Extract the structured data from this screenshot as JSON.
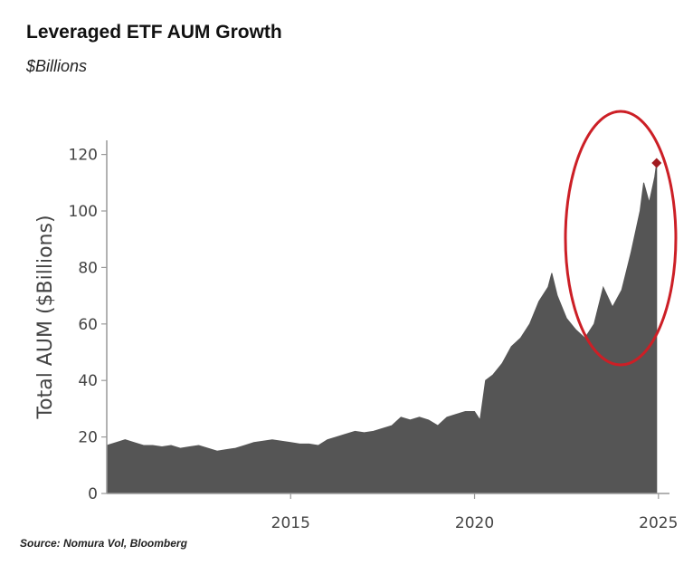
{
  "header": {
    "title": "Leveraged ETF AUM Growth",
    "subtitle": "$Billions"
  },
  "footer": {
    "source": "Source: Nomura Vol, Bloomberg"
  },
  "colors": {
    "area": "#555555",
    "highlight": "#cc1f26",
    "marker": "#a11a1f",
    "axis": "#999999"
  },
  "chart_data": {
    "type": "area",
    "title": "Leveraged ETF AUM Growth",
    "subtitle": "$Billions",
    "ylabel": "Total AUM ($Billions)",
    "xlabel": "",
    "xlim": [
      2010.0,
      2025.3
    ],
    "ylim": [
      0,
      125
    ],
    "yticks": [
      0,
      20,
      40,
      60,
      80,
      100,
      120
    ],
    "xticks": [
      2015,
      2020,
      2025
    ],
    "ytick_labels": [
      "0",
      "20",
      "40",
      "60",
      "80",
      "100",
      "120"
    ],
    "xtick_labels": [
      "2015",
      "2020",
      "2025"
    ],
    "series": [
      {
        "name": "Total AUM",
        "x": [
          2010.0,
          2010.25,
          2010.5,
          2010.75,
          2011.0,
          2011.25,
          2011.5,
          2011.75,
          2012.0,
          2012.25,
          2012.5,
          2012.75,
          2013.0,
          2013.25,
          2013.5,
          2013.75,
          2014.0,
          2014.25,
          2014.5,
          2014.75,
          2015.0,
          2015.25,
          2015.5,
          2015.75,
          2016.0,
          2016.25,
          2016.5,
          2016.75,
          2017.0,
          2017.25,
          2017.5,
          2017.75,
          2018.0,
          2018.25,
          2018.5,
          2018.75,
          2019.0,
          2019.25,
          2019.5,
          2019.75,
          2020.0,
          2020.15,
          2020.3,
          2020.5,
          2020.75,
          2021.0,
          2021.25,
          2021.5,
          2021.75,
          2022.0,
          2022.1,
          2022.25,
          2022.5,
          2022.75,
          2023.0,
          2023.25,
          2023.5,
          2023.75,
          2024.0,
          2024.25,
          2024.5,
          2024.6,
          2024.75,
          2024.9,
          2024.95
        ],
        "values": [
          17,
          18,
          19,
          18,
          17,
          17,
          16.5,
          17,
          16,
          16.5,
          17,
          16,
          15,
          15.5,
          16,
          17,
          18,
          18.5,
          19,
          18.5,
          18,
          17.5,
          17.5,
          17,
          19,
          20,
          21,
          22,
          21.5,
          22,
          23,
          24,
          27,
          26,
          27,
          26,
          24,
          27,
          28,
          29,
          29,
          26,
          40,
          42,
          46,
          52,
          55,
          60,
          68,
          73,
          78,
          70,
          62,
          58,
          55,
          60,
          73,
          66,
          72,
          85,
          100,
          110,
          103,
          112,
          117
        ]
      }
    ],
    "annotations": {
      "last_value_marker": {
        "x": 2024.95,
        "y": 117
      },
      "highlight_ellipse": "red ellipse around the 2023-2025 run-up"
    }
  }
}
